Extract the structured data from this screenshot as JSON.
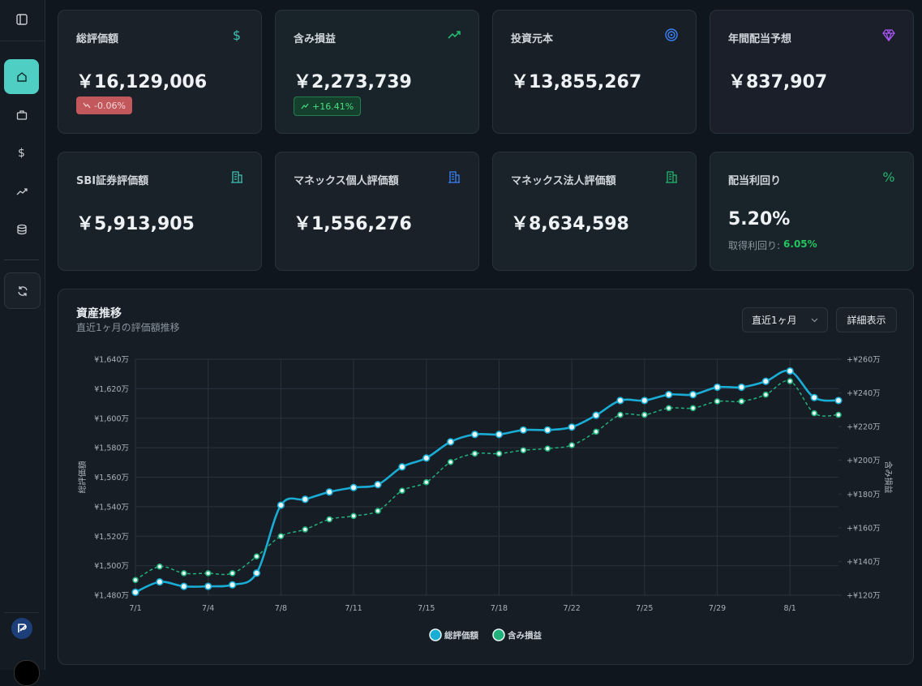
{
  "cards": [
    {
      "title": "総評価額",
      "value": "￥16,129,006",
      "badge": "-0.06%"
    },
    {
      "title": "含み損益",
      "value": "￥2,273,739",
      "badge": "+16.41%"
    },
    {
      "title": "投資元本",
      "value": "￥13,855,267"
    },
    {
      "title": "年間配当予想",
      "value": "￥837,907"
    },
    {
      "title": "SBI証券評価額",
      "value": "￥5,913,905"
    },
    {
      "title": "マネックス個人評価額",
      "value": "￥1,556,276"
    },
    {
      "title": "マネックス法人評価額",
      "value": "￥8,634,598"
    },
    {
      "title": "配当利回り",
      "value": "5.20%",
      "sub_label": "取得利回り:",
      "sub_value": "6.05%"
    }
  ],
  "panel": {
    "title": "資産推移",
    "subtitle": "直近1ヶ月の評価額推移",
    "select": "直近1ヶ月",
    "button": "詳細表示"
  },
  "chart_data": {
    "type": "line",
    "categories": [
      "7/1",
      null,
      null,
      "7/4",
      null,
      null,
      "7/8",
      null,
      null,
      "7/11",
      null,
      null,
      "7/15",
      null,
      null,
      "7/18",
      null,
      null,
      "7/22",
      null,
      null,
      "7/25",
      null,
      null,
      "7/29",
      null,
      null,
      "8/1",
      null,
      null
    ],
    "ylabel": "総評価額",
    "y2label": "含み損益",
    "series": [
      {
        "name": "総評価額",
        "color": "#19acd4",
        "values": [
          1482,
          1489,
          1486,
          1486,
          1487,
          1495,
          1541,
          1545,
          1550,
          1553,
          1555,
          1567,
          1573,
          1584,
          1589,
          1589,
          1592,
          1592,
          1594,
          1602,
          1612,
          1612,
          1616,
          1616,
          1621,
          1621,
          1625,
          1632,
          1614,
          1612
        ]
      },
      {
        "name": "含み損益",
        "color": "#22b07a",
        "axis": "y2",
        "values": [
          129,
          137,
          133,
          133,
          133,
          143,
          155,
          159,
          165,
          167,
          170,
          182,
          187,
          199,
          204,
          204,
          206,
          207,
          209,
          217,
          227,
          227,
          231,
          231,
          235,
          235,
          239,
          247,
          228,
          227
        ]
      }
    ],
    "ylim": [
      1480,
      1640
    ],
    "yticks": [
      {
        "value": 1480,
        "label": "¥1,480万"
      },
      {
        "value": 1500,
        "label": "¥1,500万"
      },
      {
        "value": 1520,
        "label": "¥1,520万"
      },
      {
        "value": 1540,
        "label": "¥1,540万"
      },
      {
        "value": 1560,
        "label": "¥1,560万"
      },
      {
        "value": 1580,
        "label": "¥1,580万"
      },
      {
        "value": 1600,
        "label": "¥1,600万"
      },
      {
        "value": 1620,
        "label": "¥1,620万"
      },
      {
        "value": 1640,
        "label": "¥1,640万"
      }
    ],
    "y2lim": [
      120,
      260
    ],
    "y2ticks": [
      {
        "value": 120,
        "label": "+¥120万"
      },
      {
        "value": 140,
        "label": "+¥140万"
      },
      {
        "value": 160,
        "label": "+¥160万"
      },
      {
        "value": 180,
        "label": "+¥180万"
      },
      {
        "value": 200,
        "label": "+¥200万"
      },
      {
        "value": 220,
        "label": "+¥220万"
      },
      {
        "value": 240,
        "label": "+¥240万"
      },
      {
        "value": 260,
        "label": "+¥260万"
      }
    ],
    "grid": true,
    "legend": "bottom"
  }
}
